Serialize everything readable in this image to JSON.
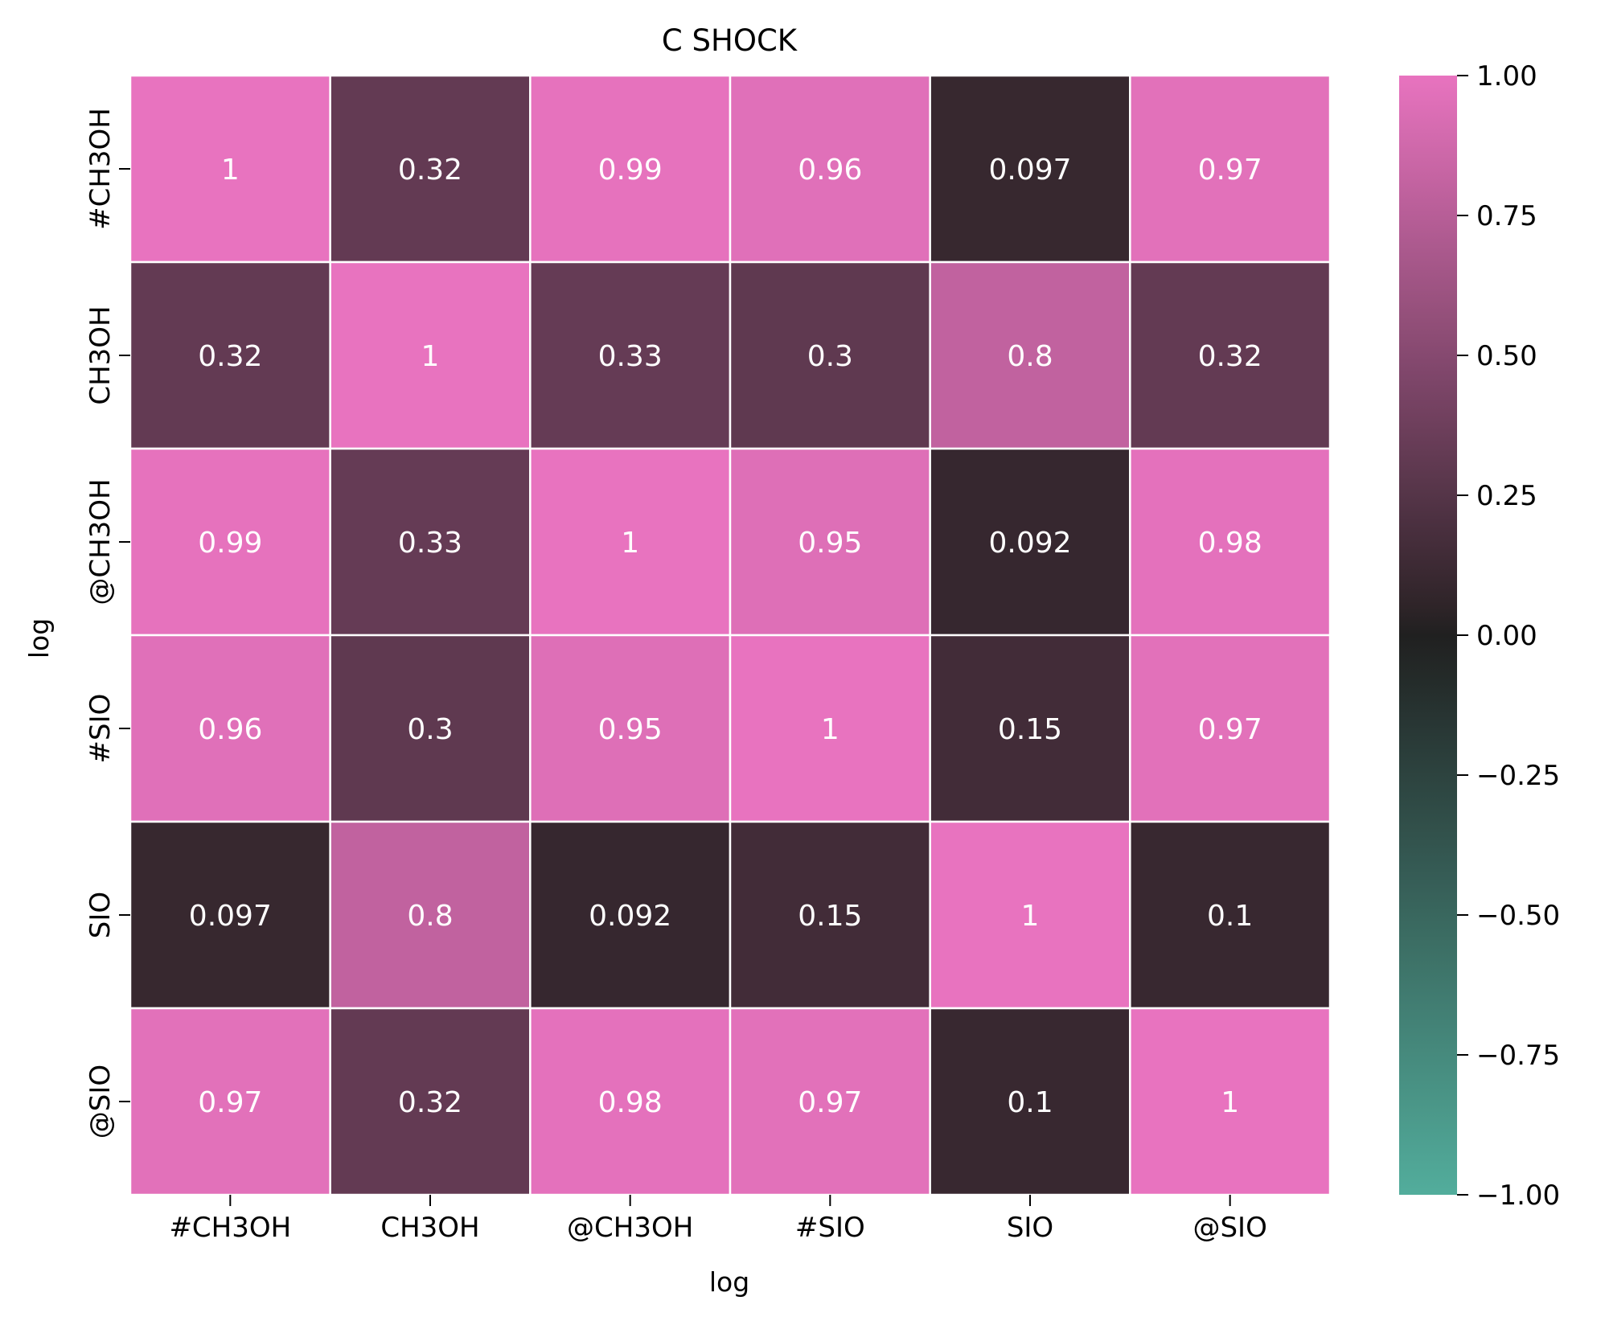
{
  "chart_data": {
    "type": "heatmap",
    "title": "C SHOCK",
    "xlabel": "log",
    "ylabel": "log",
    "x_categories": [
      "#CH3OH",
      "CH3OH",
      "@CH3OH",
      "#SIO",
      "SIO",
      "@SIO"
    ],
    "y_categories": [
      "#CH3OH",
      "CH3OH",
      "@CH3OH",
      "#SIO",
      "SIO",
      "@SIO"
    ],
    "values": [
      [
        1,
        0.32,
        0.99,
        0.96,
        0.097,
        0.97
      ],
      [
        0.32,
        1,
        0.33,
        0.3,
        0.8,
        0.32
      ],
      [
        0.99,
        0.33,
        1,
        0.95,
        0.092,
        0.98
      ],
      [
        0.96,
        0.3,
        0.95,
        1,
        0.15,
        0.97
      ],
      [
        0.097,
        0.8,
        0.092,
        0.15,
        1,
        0.1
      ],
      [
        0.97,
        0.32,
        0.98,
        0.97,
        0.1,
        1
      ]
    ],
    "labels": [
      [
        "1",
        "0.32",
        "0.99",
        "0.96",
        "0.097",
        "0.97"
      ],
      [
        "0.32",
        "1",
        "0.33",
        "0.3",
        "0.8",
        "0.32"
      ],
      [
        "0.99",
        "0.33",
        "1",
        "0.95",
        "0.092",
        "0.98"
      ],
      [
        "0.96",
        "0.3",
        "0.95",
        "1",
        "0.15",
        "0.97"
      ],
      [
        "0.097",
        "0.8",
        "0.092",
        "0.15",
        "1",
        "0.1"
      ],
      [
        "0.97",
        "0.32",
        "0.98",
        "0.97",
        "0.1",
        "1"
      ]
    ],
    "vmin": -1,
    "vmax": 1,
    "colorbar": {
      "ticks": [
        1,
        0.75,
        0.5,
        0.25,
        0,
        -0.25,
        -0.5,
        -0.75,
        -1
      ],
      "tick_labels": [
        "1.00",
        "0.75",
        "0.50",
        "0.25",
        "0.00",
        "−0.25",
        "−0.50",
        "−0.75",
        "−1.00"
      ],
      "colors": {
        "min": "#52ad9c",
        "center": "#202020",
        "near_center_pos": "#2e2428",
        "max": "#e873bf"
      }
    },
    "cell_text_color": "#ffffff",
    "grid_line_color": "#ffffff"
  }
}
